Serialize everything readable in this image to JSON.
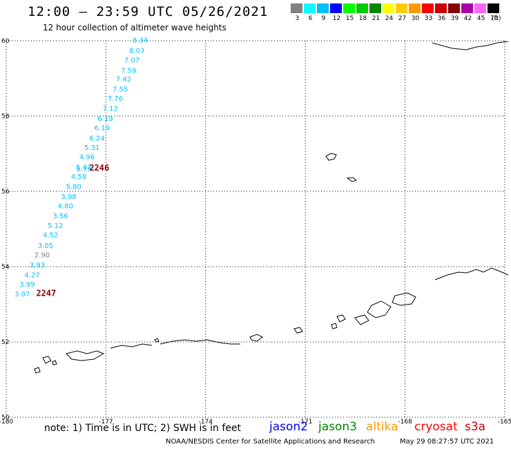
{
  "header": {
    "title": "12:00 – 23:59 UTC 05/26/2021",
    "subtitle": "12 hour collection of altimeter wave heights"
  },
  "color_scale": {
    "unit": "(ft)",
    "swatches": [
      {
        "label": "3",
        "color": "#808080"
      },
      {
        "label": "6",
        "color": "#00ffff"
      },
      {
        "label": "9",
        "color": "#00bfff"
      },
      {
        "label": "12",
        "color": "#0000ff"
      },
      {
        "label": "15",
        "color": "#00ff00"
      },
      {
        "label": "18",
        "color": "#00cc00"
      },
      {
        "label": "21",
        "color": "#008800"
      },
      {
        "label": "24",
        "color": "#ffff00"
      },
      {
        "label": "27",
        "color": "#ffcc00"
      },
      {
        "label": "30",
        "color": "#ff9900"
      },
      {
        "label": "33",
        "color": "#ff0000"
      },
      {
        "label": "36",
        "color": "#cc0000"
      },
      {
        "label": "39",
        "color": "#880000"
      },
      {
        "label": "42",
        "color": "#aa00aa"
      },
      {
        "label": "45",
        "color": "#ff66ff"
      },
      {
        "label": "70",
        "color": "#000000"
      }
    ]
  },
  "map": {
    "lon_ticks": [
      "-180",
      "-177",
      "-174",
      "-171",
      "-168",
      "-165"
    ],
    "lat_ticks": [
      "60",
      "58",
      "56",
      "54",
      "52",
      "50"
    ],
    "lon_range": [
      -180,
      -165
    ],
    "lat_range": [
      50,
      60
    ]
  },
  "track": {
    "color": "#00bfff",
    "gray_color": "#808080",
    "points": [
      {
        "value": "8.34",
        "lon": -176.2,
        "lat": 59.95
      },
      {
        "value": "8.03",
        "lon": -176.3,
        "lat": 59.68
      },
      {
        "value": "7.07",
        "lon": -176.45,
        "lat": 59.42
      },
      {
        "value": "7.59",
        "lon": -176.55,
        "lat": 59.15
      },
      {
        "value": "7.42",
        "lon": -176.7,
        "lat": 58.92
      },
      {
        "value": "7.55",
        "lon": -176.8,
        "lat": 58.65
      },
      {
        "value": "7.76",
        "lon": -176.95,
        "lat": 58.4
      },
      {
        "value": "7.12",
        "lon": -177.1,
        "lat": 58.14
      },
      {
        "value": "6.19",
        "lon": -177.25,
        "lat": 57.87
      },
      {
        "value": "6.19",
        "lon": -177.35,
        "lat": 57.62
      },
      {
        "value": "6.24",
        "lon": -177.5,
        "lat": 57.35
      },
      {
        "value": "5.31",
        "lon": -177.65,
        "lat": 57.1
      },
      {
        "value": "4.96",
        "lon": -177.8,
        "lat": 56.85
      },
      {
        "value": "5.47",
        "lon": -177.9,
        "lat": 56.58
      },
      {
        "value": "5.79",
        "lon": -177.9,
        "lat": 56.53
      },
      {
        "value": "4.58",
        "lon": -178.05,
        "lat": 56.33
      },
      {
        "value": "5.80",
        "lon": -178.2,
        "lat": 56.06
      },
      {
        "value": "3.98",
        "lon": -178.35,
        "lat": 55.8
      },
      {
        "value": "4.80",
        "lon": -178.45,
        "lat": 55.55
      },
      {
        "value": "3.56",
        "lon": -178.6,
        "lat": 55.28
      },
      {
        "value": "5.12",
        "lon": -178.75,
        "lat": 55.03
      },
      {
        "value": "4.52",
        "lon": -178.9,
        "lat": 54.78
      },
      {
        "value": "3.05",
        "lon": -179.05,
        "lat": 54.5,
        "gray": false
      },
      {
        "value": "2.90",
        "lon": -179.15,
        "lat": 54.25,
        "gray": true
      },
      {
        "value": "3.93",
        "lon": -179.3,
        "lat": 53.98
      },
      {
        "value": "4.27",
        "lon": -179.45,
        "lat": 53.72
      },
      {
        "value": "3.99",
        "lon": -179.6,
        "lat": 53.47
      },
      {
        "value": "3.07",
        "lon": -179.75,
        "lat": 53.21
      }
    ],
    "time_labels": [
      {
        "text": "2246",
        "lon": -177.5,
        "lat": 56.55
      },
      {
        "text": "2247",
        "lon": -179.1,
        "lat": 53.22
      }
    ],
    "time_color": "#8b0000"
  },
  "footer": {
    "note": "note: 1) Time is in UTC; 2) SWH is in feet",
    "missions": [
      {
        "name": "jason2",
        "color": "#0000ff"
      },
      {
        "name": "jason3",
        "color": "#008800"
      },
      {
        "name": "altika",
        "color": "#ff9900"
      },
      {
        "name": "cryosat",
        "color": "#ff0000"
      },
      {
        "name": "s3a",
        "color": "#cc0000"
      }
    ],
    "credit": "NOAA/NESDIS Center for Satellite Applications and Research",
    "timestamp": "May 29 08:27:57 UTC 2021"
  }
}
